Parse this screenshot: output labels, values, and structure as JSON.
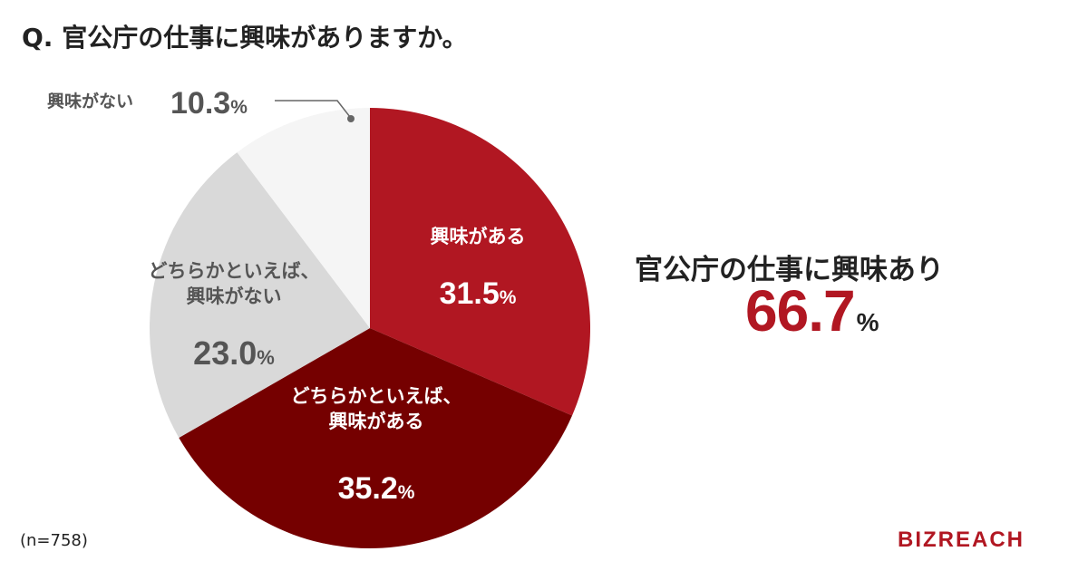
{
  "title": "Q. 官公庁の仕事に興味がありますか。",
  "note": "(n=758)",
  "logo": "BIZREACH",
  "summary": {
    "label": "官公庁の仕事に興味あり",
    "value": "66.7",
    "unit": "%"
  },
  "chart_data": {
    "type": "pie",
    "unit": "%",
    "slices": [
      {
        "name": "興味がある",
        "label_lines": [
          "興味がある"
        ],
        "value": 31.5,
        "value_text": "31.5",
        "color": "#b11722",
        "text_color": "#ffffff"
      },
      {
        "name": "どちらかといえば、興味がある",
        "label_lines": [
          "どちらかといえば、",
          "興味がある"
        ],
        "value": 35.2,
        "value_text": "35.2",
        "color": "#750000",
        "text_color": "#ffffff"
      },
      {
        "name": "どちらかといえば、興味がない",
        "label_lines": [
          "どちらかといえば、",
          "興味がない"
        ],
        "value": 23.0,
        "value_text": "23.0",
        "color": "#d9d9d9",
        "text_color": "#555555"
      },
      {
        "name": "興味がない",
        "label_lines": [
          "興味がない"
        ],
        "value": 10.3,
        "value_text": "10.3",
        "color": "#f5f5f5",
        "text_color": "#555555"
      }
    ]
  }
}
